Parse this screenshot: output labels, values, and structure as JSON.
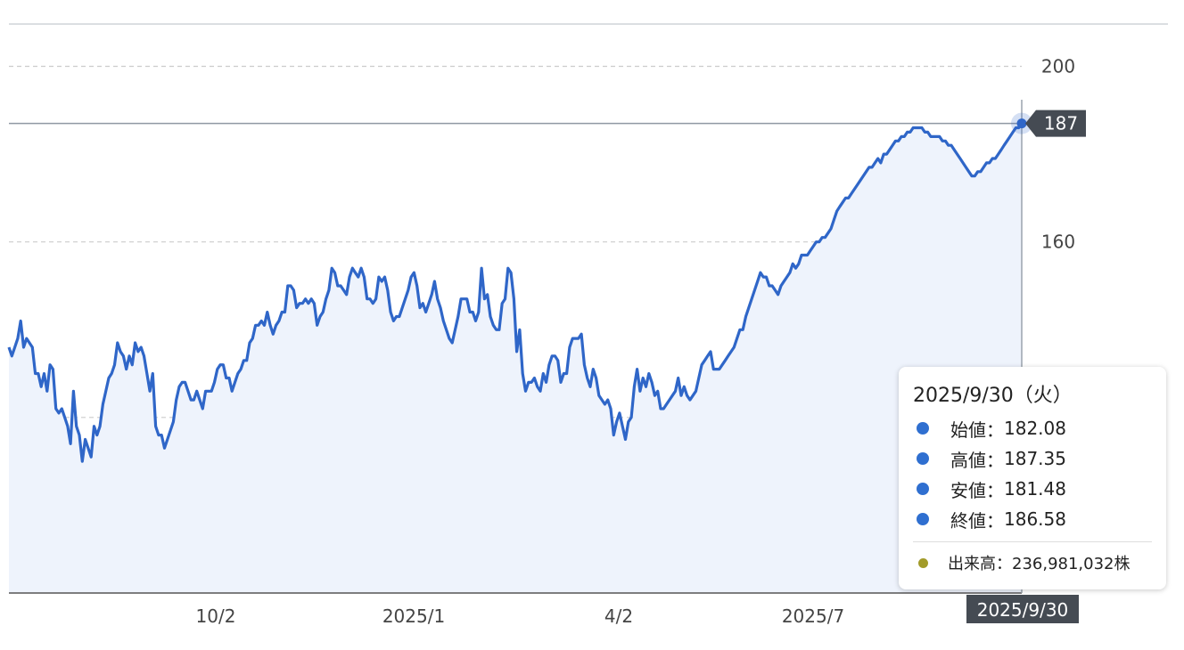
{
  "chart_data": {
    "type": "area",
    "x_ticks": [
      "10/2",
      "2025/1",
      "4/2",
      "2025/7"
    ],
    "y_ticks": [
      120,
      160,
      200
    ],
    "y_tick_labels": [
      "",
      "160",
      "200"
    ],
    "ylim": [
      80,
      207
    ],
    "grid": true,
    "values": [
      136,
      134,
      136,
      138,
      142,
      136,
      138,
      137,
      136,
      130,
      130,
      127,
      130,
      126,
      132,
      131,
      122,
      121,
      122,
      120,
      118,
      114,
      126,
      118,
      116,
      110,
      115,
      113,
      111,
      118,
      116,
      118,
      123,
      126,
      129,
      130,
      132,
      137,
      135,
      134,
      131,
      134,
      132,
      137,
      135,
      136,
      134,
      130,
      126,
      130,
      118,
      116,
      116,
      113,
      115,
      117,
      119,
      124,
      127,
      128,
      128,
      126,
      124,
      124,
      126,
      124,
      122,
      126,
      126,
      126,
      128,
      131,
      132,
      132,
      129,
      129,
      126,
      128,
      130,
      131,
      133,
      133,
      137,
      138,
      141,
      141,
      142,
      141,
      144,
      141,
      139,
      141,
      142,
      144,
      144,
      150,
      150,
      149,
      145,
      146,
      146,
      147,
      146,
      147,
      146,
      141,
      143,
      144,
      147,
      149,
      154,
      153,
      150,
      150,
      149,
      148,
      152,
      154,
      153,
      152,
      154,
      152,
      147,
      147,
      146,
      147,
      152,
      151,
      152,
      149,
      144,
      142,
      143,
      143,
      145,
      147,
      149,
      152,
      153,
      150,
      145,
      146,
      144,
      146,
      148,
      151,
      147,
      145,
      142,
      140,
      138,
      137,
      140,
      143,
      147,
      147,
      147,
      144,
      144,
      142,
      144,
      154,
      147,
      148,
      143,
      141,
      140,
      140,
      146,
      147,
      154,
      153,
      147,
      135,
      140,
      130,
      126,
      128,
      128,
      129,
      127,
      126,
      130,
      128,
      132,
      134,
      134,
      133,
      128,
      130,
      130,
      136,
      138,
      138,
      138,
      139,
      132,
      129,
      127,
      131,
      129,
      125,
      124,
      123,
      124,
      122,
      116,
      119,
      121,
      118,
      115,
      119,
      120,
      127,
      131,
      126,
      129,
      127,
      130,
      128,
      125,
      126,
      122,
      122,
      123,
      124,
      125,
      126,
      129,
      125,
      127,
      125,
      124,
      125,
      126,
      129,
      132,
      133,
      134,
      135,
      131,
      131,
      131,
      132,
      133,
      134,
      135,
      136,
      138,
      140,
      140,
      143,
      145,
      147,
      149,
      151,
      153,
      152,
      152,
      150,
      150,
      149,
      148,
      150,
      151,
      152,
      153,
      155,
      154,
      155,
      157,
      157,
      157,
      158,
      159,
      160,
      160,
      161,
      161,
      162,
      163,
      165,
      167,
      168,
      169,
      170,
      170,
      171,
      172,
      173,
      174,
      175,
      176,
      177,
      177,
      178,
      179,
      178,
      180,
      180,
      181,
      182,
      183,
      183,
      184,
      184,
      185,
      185,
      186,
      186,
      186,
      186,
      185,
      185,
      184,
      184,
      184,
      184,
      183,
      183,
      182,
      182,
      181,
      180,
      179,
      178,
      177,
      176,
      175,
      175,
      176,
      176,
      177,
      178,
      178,
      179,
      179,
      180,
      181,
      182,
      183,
      184,
      185,
      186,
      186,
      187
    ],
    "last_value_label": "187",
    "last_date_label": "2025/9/30"
  },
  "tooltip": {
    "date": "2025/9/30（火）",
    "rows": [
      {
        "label": "始値",
        "value": "182.08",
        "color": "#2f6fd0"
      },
      {
        "label": "高値",
        "value": "187.35",
        "color": "#2f6fd0"
      },
      {
        "label": "安値",
        "value": "181.48",
        "color": "#2f6fd0"
      },
      {
        "label": "終値",
        "value": "186.58",
        "color": "#2f6fd0"
      }
    ],
    "volume": {
      "label": "出来高",
      "value": "236,981,032株",
      "color": "#a29b2a"
    }
  },
  "colors": {
    "line": "#2f66c8",
    "fill": "#eef3fc",
    "grid": "#cccccc",
    "axis": "#444444",
    "tag": "#454b53"
  }
}
